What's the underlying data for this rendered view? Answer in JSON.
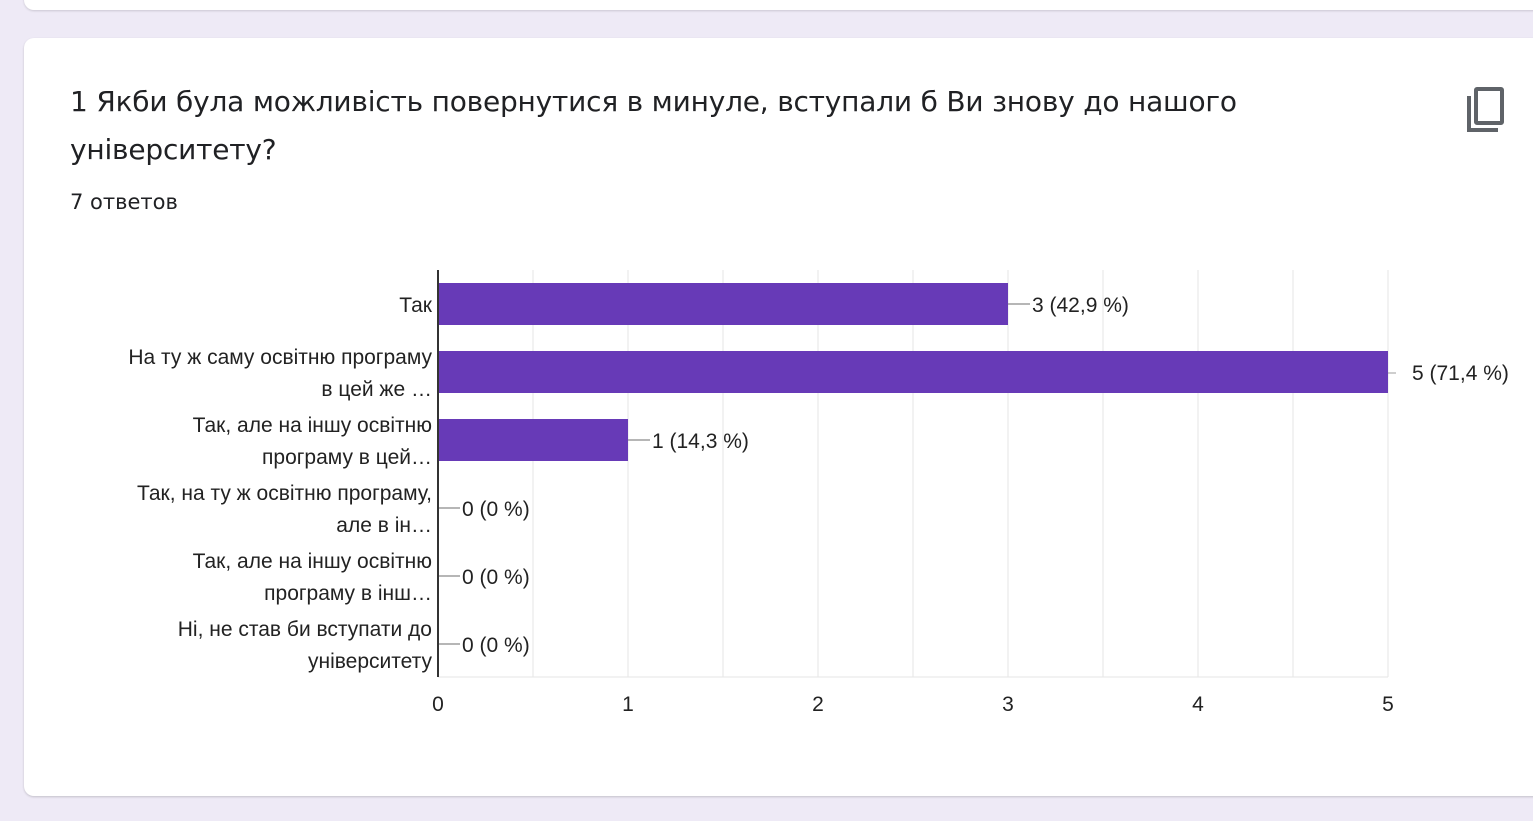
{
  "question": {
    "title": "1 Якби була можливість повернутися в минуле, вступали б Ви знову до нашого університету?",
    "responses": "7 ответов"
  },
  "copy_icon": "copy-icon",
  "colors": {
    "bar": "#673ab7",
    "background": "#eeeaf6"
  },
  "chart_data": {
    "type": "bar",
    "orientation": "horizontal",
    "categories": [
      [
        "Так"
      ],
      [
        "На ту ж саму освітню програму",
        "в цей же …"
      ],
      [
        "Так, але на іншу освітню",
        "програму в цей…"
      ],
      [
        "Так, на ту ж освітню програму,",
        "але в ін…"
      ],
      [
        "Так, але на іншу освітню",
        "програму в інш…"
      ],
      [
        "Ні, не став би вступати до",
        "університету"
      ]
    ],
    "values": [
      3,
      5,
      1,
      0,
      0,
      0
    ],
    "value_labels": [
      "3 (42,9 %)",
      "5 (71,4 %)",
      "1 (14,3 %)",
      "0 (0 %)",
      "0 (0 %)",
      "0 (0 %)"
    ],
    "xlim": [
      0,
      5
    ],
    "xticks": [
      "0",
      "1",
      "2",
      "3",
      "4",
      "5"
    ],
    "grid": true
  }
}
